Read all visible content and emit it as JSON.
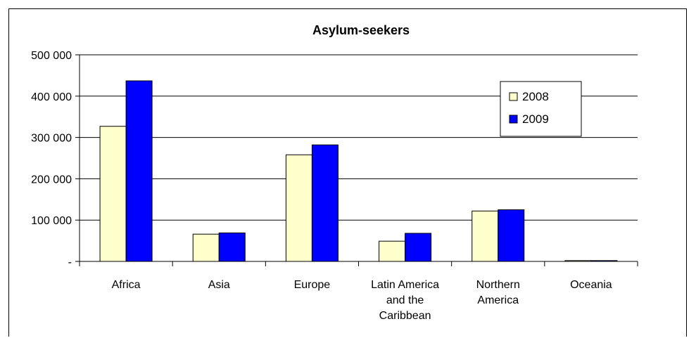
{
  "chart_data": {
    "type": "bar",
    "title": "Asylum-seekers",
    "xlabel": "",
    "ylabel": "",
    "categories": [
      [
        "Africa"
      ],
      [
        "Asia"
      ],
      [
        "Europe"
      ],
      [
        "Latin America",
        "and the",
        "Caribbean"
      ],
      [
        "Northern",
        "America"
      ],
      [
        "Oceania"
      ]
    ],
    "series": [
      {
        "name": "2008",
        "color": "#FFFFCC",
        "values": [
          327000,
          66000,
          258000,
          49000,
          122000,
          2000
        ]
      },
      {
        "name": "2009",
        "color": "#0000FF",
        "values": [
          437000,
          69000,
          282000,
          68000,
          125000,
          2000
        ]
      }
    ],
    "ylim": [
      0,
      500000
    ],
    "yticks": [
      0,
      100000,
      200000,
      300000,
      400000,
      500000
    ],
    "ytick_labels": [
      "-",
      "100 000",
      "200 000",
      "300 000",
      "400 000",
      "500 000"
    ],
    "grid": true,
    "legend_position": "top-right"
  }
}
